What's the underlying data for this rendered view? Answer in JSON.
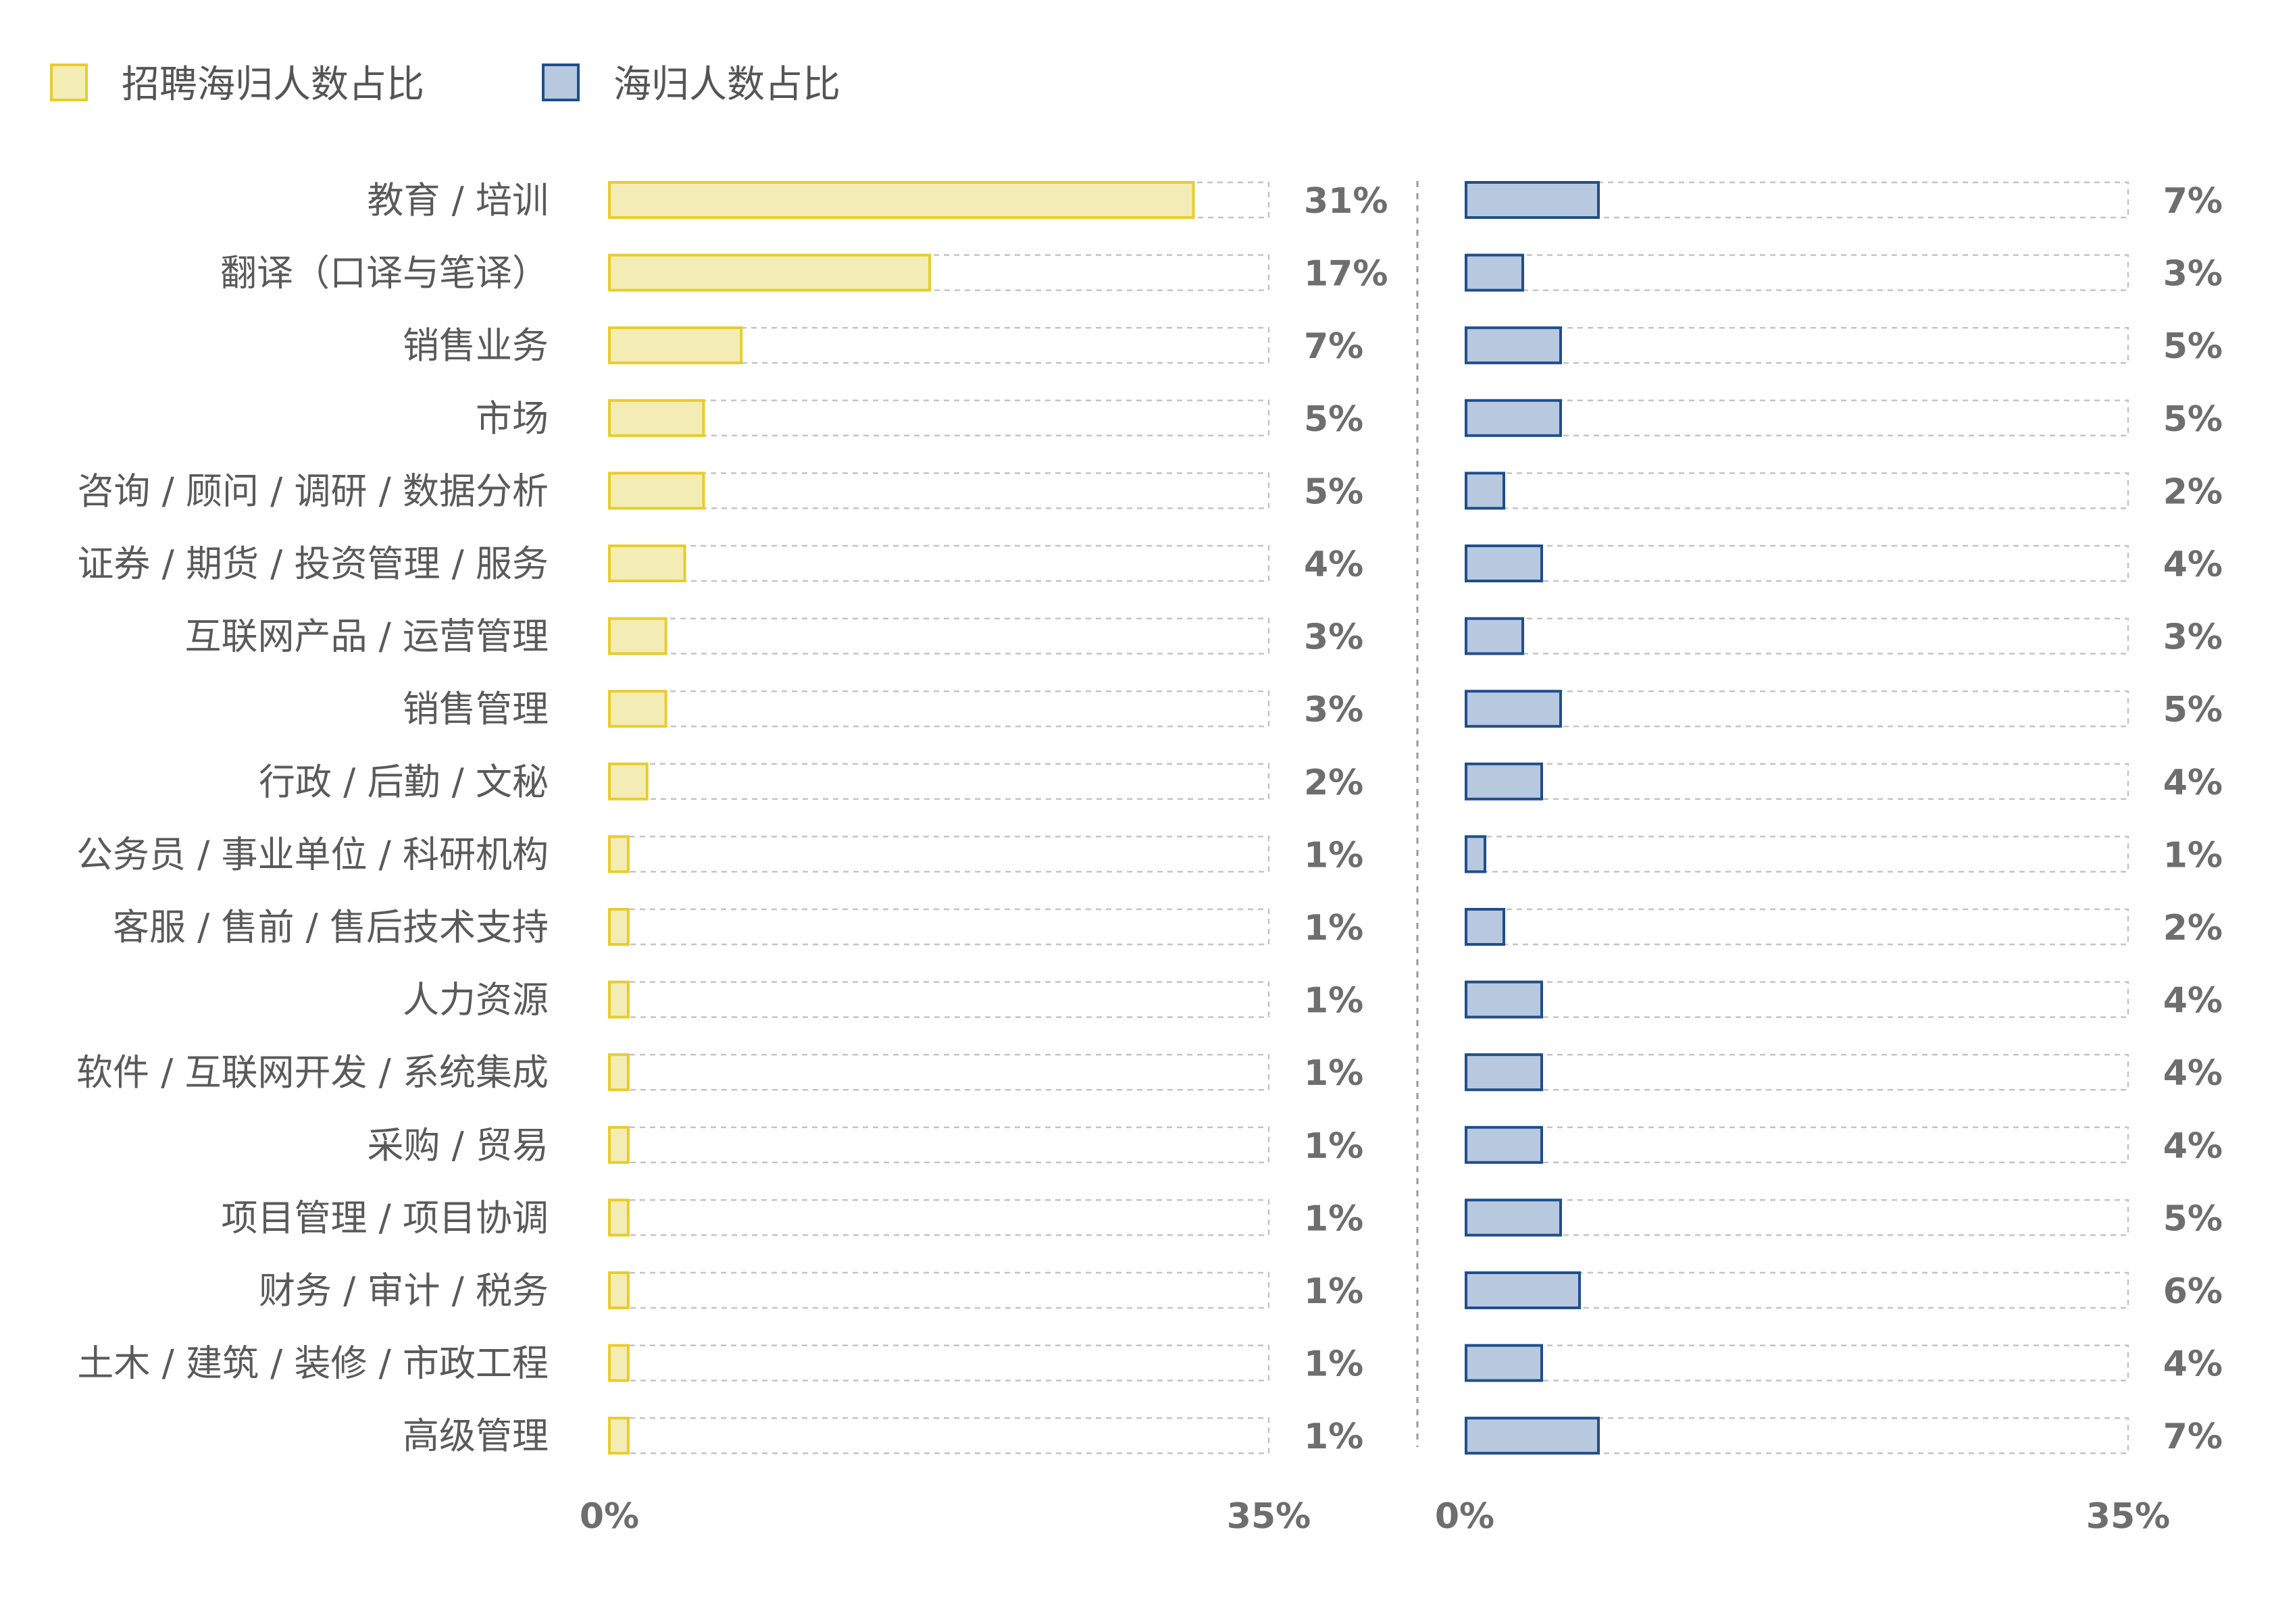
{
  "chart_data": {
    "type": "bar",
    "orientation": "horizontal",
    "categories": [
      "教育 / 培训",
      "翻译（口译与笔译）",
      "销售业务",
      "市场",
      "咨询 / 顾问 / 调研 / 数据分析",
      "证券 / 期货 / 投资管理 / 服务",
      "互联网产品 / 运营管理",
      "销售管理",
      "行政 / 后勤 / 文秘",
      "公务员 / 事业单位 / 科研机构",
      "客服 / 售前 / 售后技术支持",
      "人力资源",
      "软件 / 互联网开发 / 系统集成",
      "采购 / 贸易",
      "项目管理 / 项目协调",
      "财务 / 审计 / 税务",
      "土木 / 建筑 / 装修 / 市政工程",
      "高级管理"
    ],
    "series": [
      {
        "name": "招聘海归人数占比",
        "fill": "#f3edb5",
        "stroke": "#e8cc2c",
        "values": [
          31,
          17,
          7,
          5,
          5,
          4,
          3,
          3,
          2,
          1,
          1,
          1,
          1,
          1,
          1,
          1,
          1,
          1
        ],
        "labels": [
          "31%",
          "17%",
          "7%",
          "5%",
          "5%",
          "4%",
          "3%",
          "3%",
          "2%",
          "1%",
          "1%",
          "1%",
          "1%",
          "1%",
          "1%",
          "1%",
          "1%",
          "1%"
        ]
      },
      {
        "name": "海归人数占比",
        "fill": "#b8c8de",
        "stroke": "#1f4e8c",
        "values": [
          7,
          3,
          5,
          5,
          2,
          4,
          3,
          5,
          4,
          1,
          2,
          4,
          4,
          4,
          5,
          6,
          4,
          7
        ],
        "labels": [
          "7%",
          "3%",
          "5%",
          "5%",
          "2%",
          "4%",
          "3%",
          "5%",
          "4%",
          "1%",
          "2%",
          "4%",
          "4%",
          "4%",
          "5%",
          "6%",
          "4%",
          "7%"
        ]
      }
    ],
    "xlim": [
      0,
      35
    ],
    "xticks": [
      "0%",
      "35%"
    ],
    "legend": "top-left",
    "grid": false
  }
}
